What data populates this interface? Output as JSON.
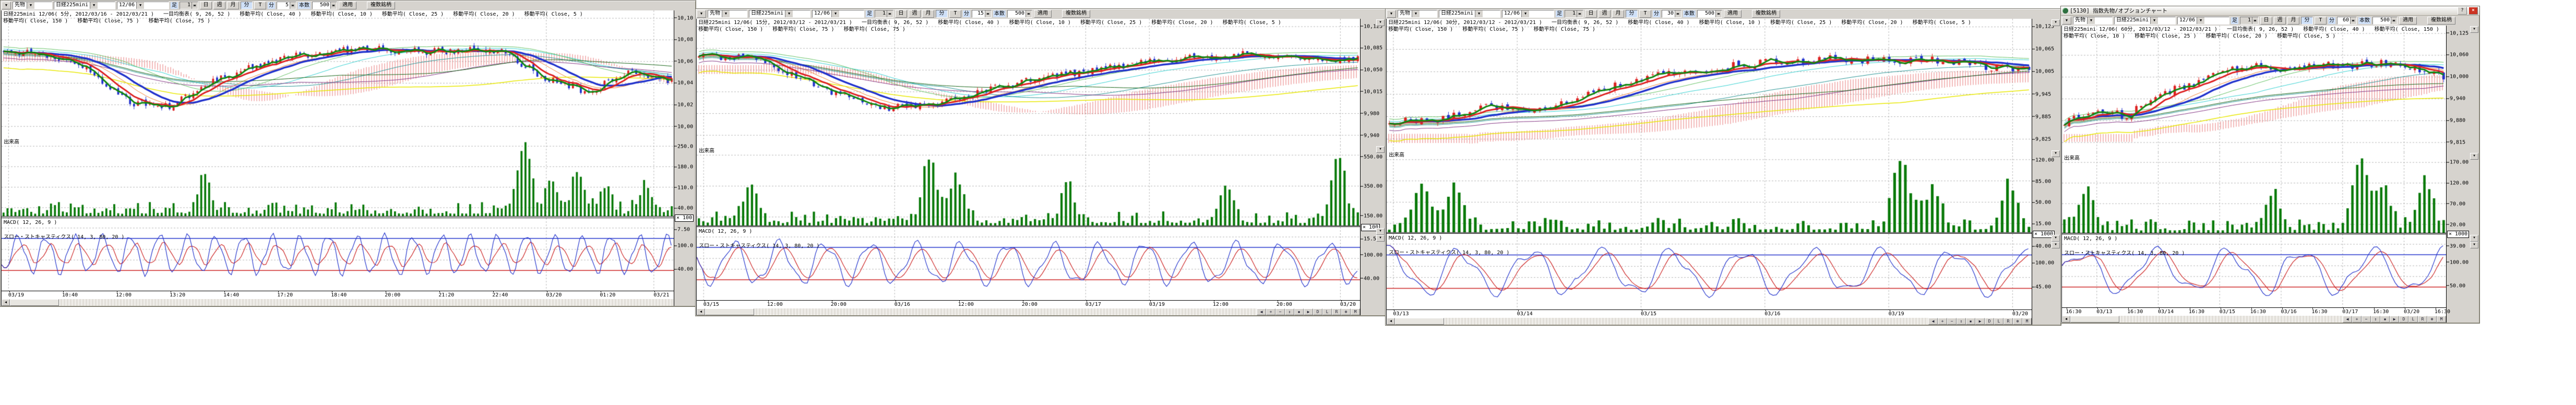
{
  "app": {
    "background": "#ffffff"
  },
  "shared": {
    "toolbar": {
      "dropdown_arrow": "▼",
      "category": "先物",
      "symbol": "日経225mini",
      "contract": "12/06",
      "bar_type_label": "足",
      "bar_type_value": "1",
      "period_day": "日",
      "period_week": "週",
      "period_month": "月",
      "period_minute": "分",
      "period_tick": "T",
      "minute_label": "分",
      "count_label": "本数",
      "count_value": "500",
      "apply_button": "適用",
      "multi_symbol_button": "複数銘柄"
    },
    "pane_labels": {
      "volume": "出来高",
      "macd": "MACD( 12, 26, 9 )",
      "stoch": "スロー・ストキャスティクス( 14, 3, 80, 20 )"
    },
    "scroll_buttons": [
      "◀",
      "+",
      "−",
      "⇕",
      "▪",
      "▶",
      "D",
      "L",
      "R",
      "⊛",
      "M"
    ],
    "scroll_left_arrow": "◀"
  },
  "colors": {
    "candle_up": "#dd2222",
    "candle_down": "#2233cc",
    "volume_bar": "#0a7a0a",
    "ma_fast": "#dd2222",
    "ma_slow": "#2233cc",
    "price_line": "#118811",
    "cloud": "#e05050",
    "stoch_k": "#2233cc",
    "stoch_d": "#cc2222",
    "overbought_line": "#2233cc",
    "oversold_line": "#cc2222",
    "grid": "#b4b4b4"
  },
  "windows": [
    {
      "id": "w1",
      "minute_value": "5",
      "info_line1": "日経225mini 12/06( 5分, 2012/03/16 - 2012/03/21 )   一目均衡表( 9, 26, 52 )   移動平均( Close, 40 )   移動平均( Close, 10 )   移動平均( Close, 25 )   移動平均( Close, 20 )   移動平均( Close, 5 )",
      "info_line2": "移動平均( Close, 150 )   移動平均( Close, 75 )   移動平均( Close, 75 )",
      "price_ticks": [
        "10,10",
        "10,08",
        "10,06",
        "10,04",
        "10,02",
        "10,00"
      ],
      "volume_ticks": [
        "250.0",
        "180.0",
        "110.0",
        "40.00"
      ],
      "multiplier": "× 100",
      "macd_ticks": [
        "7.50"
      ],
      "stoch_ticks": [
        "100.0",
        "40.00"
      ],
      "time_labels": [
        "03/19",
        "10:40",
        "12:00",
        "13:20",
        "14:40",
        "17:20",
        "18:40",
        "20:00",
        "21:20",
        "22:40",
        "03/20",
        "01:20",
        "03/21"
      ]
    },
    {
      "id": "w2",
      "minute_value": "15",
      "info_line1": "日経225mini 12/06( 15分, 2012/03/12 - 2012/03/21 )   一目均衡表( 9, 26, 52 )   移動平均( Close, 40 )   移動平均( Close, 10 )   移動平均( Close, 25 )   移動平均( Close, 20 )   移動平均( Close, 5 )",
      "info_line2": "移動平均( Close, 150 )   移動平均( Close, 75 )   移動平均( Close, 75 )",
      "price_ticks": [
        "10,125",
        "10,085",
        "10,050",
        "10,015",
        "9,980",
        "9,940"
      ],
      "volume_ticks": [
        "550.00",
        "350.00",
        "150.00"
      ],
      "multiplier": "× 100",
      "macd_ticks": [
        "15.50"
      ],
      "stoch_ticks": [
        "100.00",
        "40.00"
      ],
      "time_labels": [
        "03/15",
        "12:00",
        "20:00",
        "03/16",
        "12:00",
        "20:00",
        "03/17",
        "03/19",
        "12:00",
        "20:00",
        "03/20"
      ]
    },
    {
      "id": "w3",
      "minute_value": "30",
      "info_line1": "日経225mini 12/06( 30分, 2012/03/12 - 2012/03/21 )   一目均衡表( 9, 26, 52 )   移動平均( Close, 40 )   移動平均( Close, 10 )   移動平均( Close, 25 )   移動平均( Close, 20 )   移動平均( Close, 5 )",
      "info_line2": "移動平均( Close, 150 )   移動平均( Close, 75 )   移動平均( Close, 75 )",
      "price_ticks": [
        "10,125",
        "10,065",
        "10,005",
        "9,945",
        "9,885",
        "9,825"
      ],
      "volume_ticks": [
        "120.00",
        "85.00",
        "50.00",
        "15.00"
      ],
      "multiplier": "× 1000",
      "macd_ticks": [
        "40.00"
      ],
      "stoch_ticks": [
        "100.00",
        "45.00"
      ],
      "time_labels": [
        "03/13",
        "03/14",
        "03/15",
        "03/16",
        "03/19",
        "03/20"
      ]
    },
    {
      "id": "w4",
      "title": "[5130] 指数先物/オプションチャート",
      "help_button": "?",
      "close_button": "×",
      "minute_value": "60",
      "info_line1": "日経225mini 12/06( 60分, 2012/03/12 - 2012/03/21 )   一目均衡表( 9, 26, 52 )   移動平均( Close, 40 )   移動平均( Close, 150 )",
      "info_line2": "移動平均( Close, 10 )   移動平均( Close, 25 )   移動平均( Close, 20 )   移動平均( Close, 5 )",
      "price_ticks": [
        "10,125",
        "10,060",
        "10,000",
        "9,940",
        "9,880",
        "9,815"
      ],
      "volume_ticks": [
        "170.00",
        "120.00",
        "70.00",
        "20.00"
      ],
      "multiplier": "× 1000",
      "macd_ticks": [
        "39.00"
      ],
      "stoch_ticks": [
        "100.00",
        "50.00"
      ],
      "time_labels": [
        "16:30",
        "03/13",
        "16:30",
        "03/14",
        "16:30",
        "03/15",
        "16:30",
        "03/16",
        "16:30",
        "03/17",
        "16:30",
        "03/20",
        "16:30"
      ]
    }
  ],
  "chart_data": [
    {
      "window": "w1",
      "type": "candlestick",
      "instrument": "日経225mini",
      "contract": "12/06",
      "timeframe": "5分",
      "date_range": "2012/03/16 - 2012/03/21",
      "bar_count": 500,
      "indicators": [
        "一目均衡表( 9, 26, 52 )",
        "移動平均( Close, 40 )",
        "移動平均( Close, 10 )",
        "移動平均( Close, 25 )",
        "移動平均( Close, 20 )",
        "移動平均( Close, 5 )",
        "移動平均( Close, 150 )",
        "移動平均( Close, 75 )",
        "移動平均( Close, 75 )",
        "MACD( 12, 26, 9 )",
        "スロー・ストキャスティクス( 14, 3, 80, 20 )"
      ],
      "price_axis": [
        10100,
        10080,
        10060,
        10040,
        10020,
        10000
      ],
      "volume_axis": [
        250,
        180,
        110,
        40
      ],
      "volume_multiplier": 100,
      "macd_axis": [
        7.5
      ],
      "stoch_axis": [
        100,
        40
      ],
      "stoch_levels": [
        80,
        20
      ]
    },
    {
      "window": "w2",
      "type": "candlestick",
      "instrument": "日経225mini",
      "contract": "12/06",
      "timeframe": "15分",
      "date_range": "2012/03/12 - 2012/03/21",
      "bar_count": 500,
      "indicators": [
        "一目均衡表( 9, 26, 52 )",
        "移動平均( Close, 40 )",
        "移動平均( Close, 10 )",
        "移動平均( Close, 25 )",
        "移動平均( Close, 20 )",
        "移動平均( Close, 5 )",
        "移動平均( Close, 150 )",
        "移動平均( Close, 75 )",
        "移動平均( Close, 75 )",
        "MACD( 12, 26, 9 )",
        "スロー・ストキャスティクス( 14, 3, 80, 20 )"
      ],
      "price_axis": [
        10125,
        10085,
        10050,
        10015,
        9980,
        9940
      ],
      "volume_axis": [
        550,
        350,
        150
      ],
      "volume_multiplier": 100,
      "macd_axis": [
        15.5
      ],
      "stoch_axis": [
        100,
        40
      ],
      "stoch_levels": [
        80,
        20
      ]
    },
    {
      "window": "w3",
      "type": "candlestick",
      "instrument": "日経225mini",
      "contract": "12/06",
      "timeframe": "30分",
      "date_range": "2012/03/12 - 2012/03/21",
      "bar_count": 500,
      "indicators": [
        "一目均衡表( 9, 26, 52 )",
        "移動平均( Close, 40 )",
        "移動平均( Close, 10 )",
        "移動平均( Close, 25 )",
        "移動平均( Close, 20 )",
        "移動平均( Close, 5 )",
        "移動平均( Close, 150 )",
        "移動平均( Close, 75 )",
        "移動平均( Close, 75 )",
        "MACD( 12, 26, 9 )",
        "スロー・ストキャスティクス( 14, 3, 80, 20 )"
      ],
      "price_axis": [
        10125,
        10065,
        10005,
        9945,
        9885,
        9825
      ],
      "volume_axis": [
        120,
        85,
        50,
        15
      ],
      "volume_multiplier": 1000,
      "macd_axis": [
        40
      ],
      "stoch_axis": [
        100,
        45
      ],
      "stoch_levels": [
        80,
        20
      ]
    },
    {
      "window": "w4",
      "type": "candlestick",
      "instrument": "日経225mini",
      "contract": "12/06",
      "timeframe": "60分",
      "date_range": "2012/03/12 - 2012/03/21",
      "bar_count": 500,
      "indicators": [
        "一目均衡表( 9, 26, 52 )",
        "移動平均( Close, 40 )",
        "移動平均( Close, 150 )",
        "移動平均( Close, 10 )",
        "移動平均( Close, 25 )",
        "移動平均( Close, 20 )",
        "移動平均( Close, 5 )",
        "MACD( 12, 26, 9 )",
        "スロー・ストキャスティクス( 14, 3, 80, 20 )"
      ],
      "price_axis": [
        10125,
        10060,
        10000,
        9940,
        9880,
        9815
      ],
      "volume_axis": [
        170,
        120,
        70,
        20
      ],
      "volume_multiplier": 1000,
      "macd_axis": [
        39
      ],
      "stoch_axis": [
        100,
        50
      ],
      "stoch_levels": [
        80,
        20
      ]
    }
  ]
}
